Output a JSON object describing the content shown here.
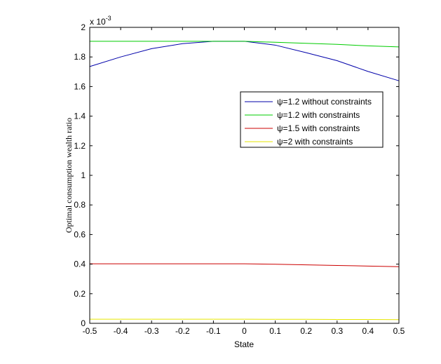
{
  "chart_data": {
    "type": "line",
    "xlabel": "State",
    "ylabel": "Optimal consumption wealth ratio",
    "exponent_label_base": "x 10",
    "exponent_label_power": "-3",
    "xlim": [
      -0.5,
      0.5
    ],
    "ylim": [
      0,
      2
    ],
    "xticks": [
      -0.5,
      -0.4,
      -0.3,
      -0.2,
      -0.1,
      0,
      0.1,
      0.2,
      0.3,
      0.4,
      0.5
    ],
    "xtick_labels": [
      "-0.5",
      "-0.4",
      "-0.3",
      "-0.2",
      "-0.1",
      "0",
      "0.1",
      "0.2",
      "0.3",
      "0.4",
      "0.5"
    ],
    "yticks": [
      0,
      0.2,
      0.4,
      0.6,
      0.8,
      1,
      1.2,
      1.4,
      1.6,
      1.8,
      2
    ],
    "ytick_labels": [
      "0",
      "0.2",
      "0.4",
      "0.6",
      "0.8",
      "1",
      "1.2",
      "1.4",
      "1.6",
      "1.8",
      "2"
    ],
    "grid": false,
    "legend_position": "top-right",
    "series": [
      {
        "name": "ψ=1.2 without constraints",
        "color": "#0000aa",
        "x": [
          -0.5,
          -0.4,
          -0.3,
          -0.2,
          -0.1,
          0,
          0.1,
          0.2,
          0.3,
          0.4,
          0.5
        ],
        "y": [
          1.735,
          1.8,
          1.856,
          1.89,
          1.906,
          1.906,
          1.88,
          1.829,
          1.775,
          1.702,
          1.639
        ]
      },
      {
        "name": "ψ=1.2 with constraints",
        "color": "#00cc00",
        "x": [
          -0.5,
          -0.4,
          -0.3,
          -0.2,
          -0.1,
          0,
          0.1,
          0.2,
          0.3,
          0.4,
          0.5
        ],
        "y": [
          1.906,
          1.906,
          1.906,
          1.906,
          1.906,
          1.906,
          1.899,
          1.892,
          1.885,
          1.875,
          1.868
        ]
      },
      {
        "name": "ψ=1.5 with constraints",
        "color": "#cc0000",
        "x": [
          -0.5,
          -0.4,
          -0.3,
          -0.2,
          -0.1,
          0,
          0.1,
          0.2,
          0.3,
          0.4,
          0.5
        ],
        "y": [
          0.402,
          0.402,
          0.402,
          0.402,
          0.402,
          0.402,
          0.399,
          0.395,
          0.391,
          0.387,
          0.383
        ]
      },
      {
        "name": "ψ=2 with constraints",
        "color": "#e6e600",
        "x": [
          -0.5,
          -0.4,
          -0.3,
          -0.2,
          -0.1,
          0,
          0.1,
          0.2,
          0.3,
          0.4,
          0.5
        ],
        "y": [
          0.028,
          0.028,
          0.028,
          0.028,
          0.028,
          0.028,
          0.027,
          0.027,
          0.026,
          0.026,
          0.025
        ]
      }
    ]
  }
}
